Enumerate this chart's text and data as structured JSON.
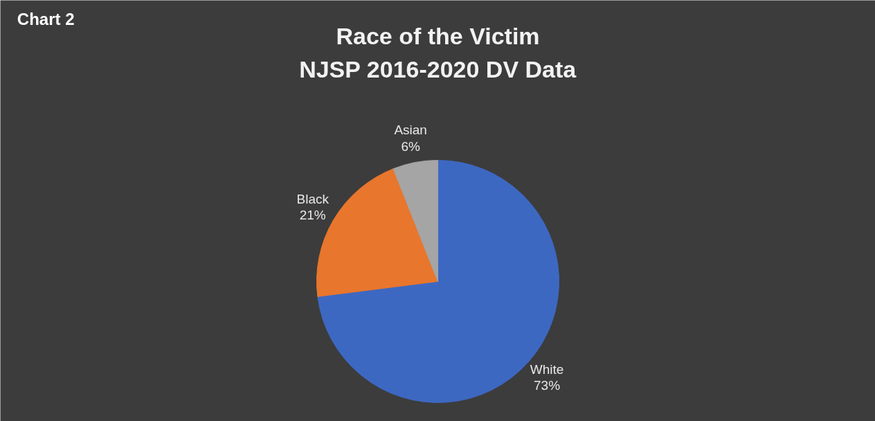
{
  "chart_data": {
    "type": "pie",
    "title": "Race of the Victim\nNJSP 2016-2020 DV Data",
    "categories": [
      "White",
      "Black",
      "Asian"
    ],
    "values": [
      73,
      21,
      6
    ],
    "value_labels": [
      "73%",
      "21%",
      "6%"
    ],
    "colors": [
      "#3d68c2",
      "#e8762d",
      "#a5a5a5"
    ],
    "annotations": [
      "Chart 2"
    ]
  }
}
